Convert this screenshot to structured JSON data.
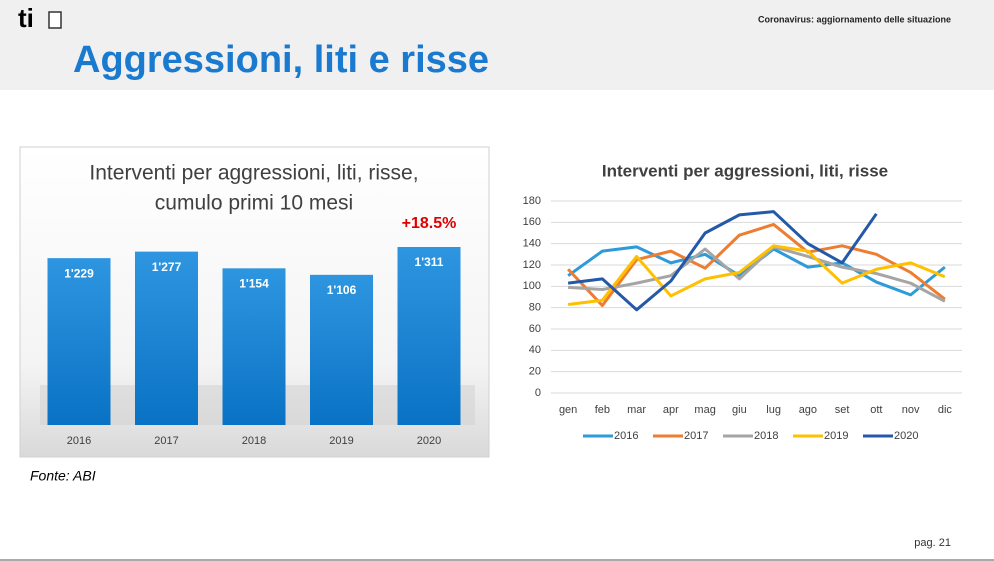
{
  "header": {
    "logo": "ti",
    "subtitle": "Coronavirus: aggiornamento delle situazione",
    "title": "Aggressioni, liti e risse"
  },
  "chart_data": [
    {
      "type": "bar",
      "title": [
        "Interventi per aggressioni, liti, risse,",
        "cumulo primi 10 mesi"
      ],
      "categories": [
        "2016",
        "2017",
        "2018",
        "2019",
        "2020"
      ],
      "values": [
        1229,
        1277,
        1154,
        1106,
        1311
      ],
      "value_labels": [
        "1'229",
        "1'277",
        "1'154",
        "1'106",
        "1'311"
      ],
      "color": "#1a86d6",
      "annotation": "+18.5%"
    },
    {
      "type": "line",
      "title": "Interventi per aggressioni, liti, risse",
      "categories": [
        "gen",
        "feb",
        "mar",
        "apr",
        "mag",
        "giu",
        "lug",
        "ago",
        "set",
        "ott",
        "nov",
        "dic"
      ],
      "ylim": [
        0,
        180
      ],
      "yticks": [
        0,
        20,
        40,
        60,
        80,
        100,
        120,
        140,
        160,
        180
      ],
      "grid": true,
      "legend": "bottom",
      "series": [
        {
          "name": "2016",
          "color": "#2e9bd9",
          "values": [
            110,
            133,
            137,
            122,
            130,
            110,
            135,
            118,
            122,
            104,
            92,
            118
          ]
        },
        {
          "name": "2017",
          "color": "#ed7d31",
          "values": [
            116,
            82,
            125,
            133,
            117,
            148,
            158,
            132,
            138,
            130,
            113,
            88
          ]
        },
        {
          "name": "2018",
          "color": "#a5a5a5",
          "values": [
            99,
            97,
            103,
            110,
            135,
            107,
            137,
            128,
            118,
            112,
            103,
            86
          ]
        },
        {
          "name": "2019",
          "color": "#ffc000",
          "values": [
            83,
            87,
            128,
            91,
            107,
            113,
            138,
            133,
            103,
            116,
            122,
            109
          ]
        },
        {
          "name": "2020",
          "color": "#2458a8",
          "values": [
            103,
            107,
            78,
            105,
            150,
            167,
            170,
            140,
            122,
            168,
            null,
            null
          ]
        }
      ]
    }
  ],
  "footer": {
    "source": "Fonte: ABI",
    "page": "pag. 21"
  }
}
